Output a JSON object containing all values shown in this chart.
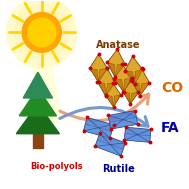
{
  "bg_color": "#ffffff",
  "sun_color": "#FFA500",
  "sun_ray_color": "#FFD700",
  "sun_glow_color": "#FFFACD",
  "tree_trunk_color": "#8B4513",
  "tree_foliage_colors": [
    "#1A6B1A",
    "#228B22",
    "#2E8B57"
  ],
  "biopol_text": "Bio-polyols",
  "biopol_color": "#CC0000",
  "anatase_text": "Anatase",
  "anatase_color": "#7B3A00",
  "anatase_crystal_face": "#C8860A",
  "anatase_crystal_face2": "#DAA520",
  "anatase_crystal_edge": "#7B3A00",
  "anatase_dot_color": "#CC0000",
  "rutile_text": "Rutile",
  "rutile_color": "#00008B",
  "rutile_crystal_face": "#5080D0",
  "rutile_crystal_face2": "#6699E0",
  "rutile_crystal_edge": "#1A3A8B",
  "rutile_dot_color": "#CC0000",
  "co_text": "CO",
  "co_color": "#DD6600",
  "fa_text": "FA",
  "fa_color": "#0000AA",
  "arrow_up_color": "#E8A07A",
  "arrow_down_color": "#7799CC"
}
